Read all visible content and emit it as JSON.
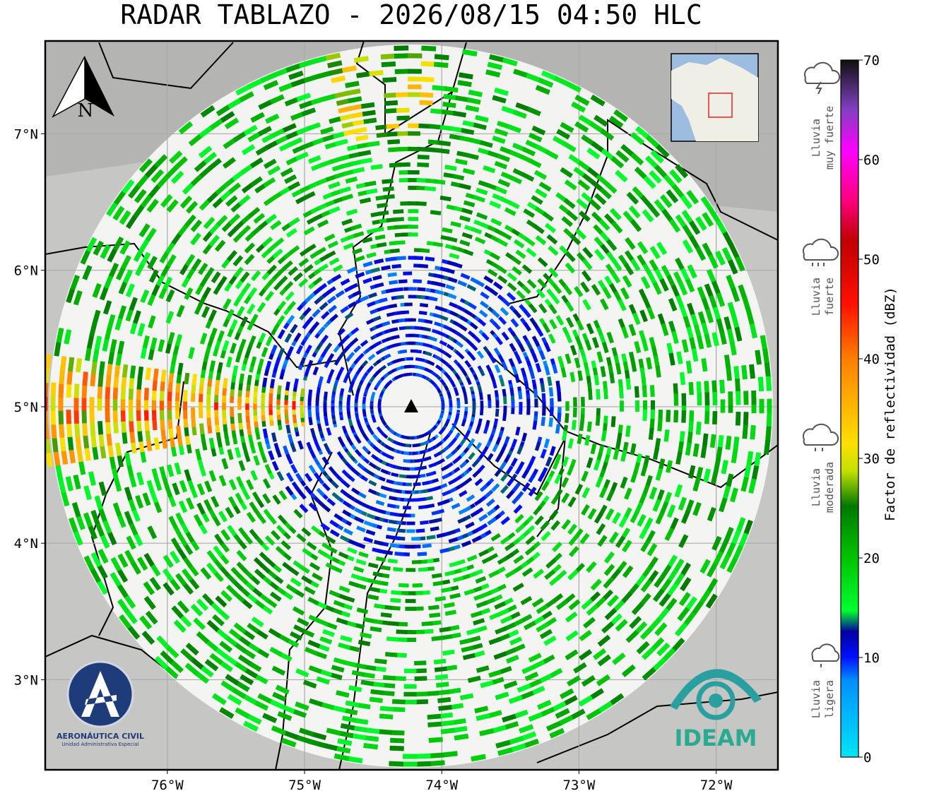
{
  "title": "RADAR TABLAZO - 2026/08/15 04:50 HLC",
  "map": {
    "xlim": [
      -76.89,
      -71.55
    ],
    "ylim": [
      2.34,
      7.68
    ],
    "xticks": [
      {
        "value": -76,
        "label": "76°W"
      },
      {
        "value": -75,
        "label": "75°W"
      },
      {
        "value": -74,
        "label": "74°W"
      },
      {
        "value": -73,
        "label": "73°W"
      },
      {
        "value": -72,
        "label": "72°W"
      }
    ],
    "yticks": [
      {
        "value": 3,
        "label": "3°N"
      },
      {
        "value": 4,
        "label": "4°N"
      },
      {
        "value": 5,
        "label": "5°N"
      },
      {
        "value": 6,
        "label": "6°N"
      },
      {
        "value": 7,
        "label": "7°N"
      }
    ],
    "grid": true,
    "north": "N"
  },
  "colorbar": {
    "label": "Factor de reflectividad (dBZ)",
    "lim": [
      0,
      70
    ],
    "ticks": [
      0,
      10,
      20,
      30,
      40,
      50,
      60,
      70
    ]
  },
  "legend": [
    {
      "lines": [
        "Lluvia",
        "muy fuerte"
      ]
    },
    {
      "lines": [
        "Lluvia",
        "fuerte"
      ]
    },
    {
      "lines": [
        "Lluvia",
        "moderada"
      ]
    },
    {
      "lines": [
        "Lluvia",
        "ligera"
      ]
    }
  ],
  "logos": {
    "aero": "AERONÁUTICA CIVIL",
    "aero_sub": "Unidad Administrativa Especial",
    "ideam": "IDEAM"
  }
}
